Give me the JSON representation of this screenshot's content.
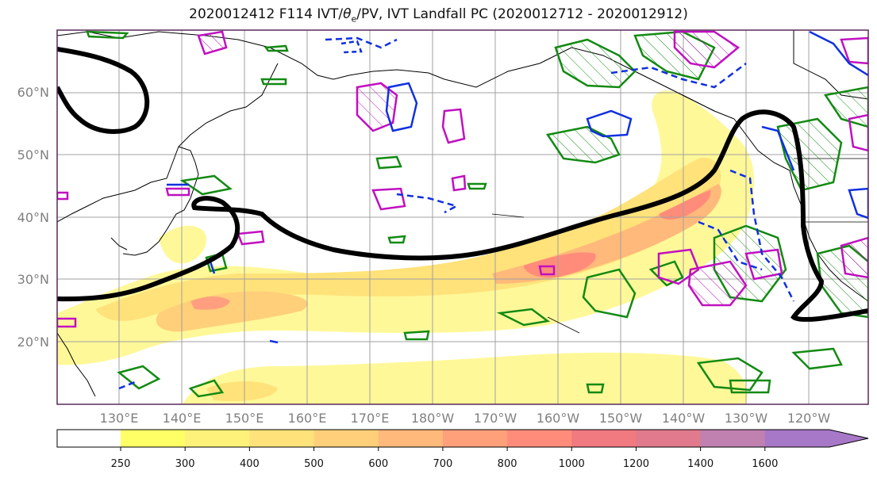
{
  "title": {
    "main": "2020012412 F114 IVT/",
    "theta": "θ",
    "theta_sub": "e",
    "rest": "/PV, IVT Landfall PC (2020012712 - 2020012912)"
  },
  "map": {
    "extent": {
      "lon_west": 120,
      "lon_east": 250,
      "lat_south": 10,
      "lat_north": 70
    },
    "lat_ticks": [
      {
        "value": 20,
        "label": "20°N"
      },
      {
        "value": 30,
        "label": "30°N"
      },
      {
        "value": 40,
        "label": "40°N"
      },
      {
        "value": 50,
        "label": "50°N"
      },
      {
        "value": 60,
        "label": "60°N"
      }
    ],
    "lon_ticks": [
      {
        "value": 130,
        "label": "130°E"
      },
      {
        "value": 140,
        "label": "140°E"
      },
      {
        "value": 150,
        "label": "150°E"
      },
      {
        "value": 160,
        "label": "160°E"
      },
      {
        "value": 170,
        "label": "170°E"
      },
      {
        "value": 180,
        "label": "180°W"
      },
      {
        "value": 190,
        "label": "170°W"
      },
      {
        "value": 200,
        "label": "160°W"
      },
      {
        "value": 210,
        "label": "150°W"
      },
      {
        "value": 220,
        "label": "140°W"
      },
      {
        "value": 230,
        "label": "130°W"
      },
      {
        "value": 240,
        "label": "120°W"
      }
    ],
    "grid": true,
    "layers": {
      "ivt_shading": "filled contours of integrated vapor transport",
      "landfall_pc_contour": "thick black line",
      "theta_e_contours": "green with green hatching",
      "pv_contours": "magenta with magenta hatching",
      "blue_contours": "blue solid and dashed"
    }
  },
  "colorbar": {
    "levels": [
      "250",
      "300",
      "400",
      "500",
      "600",
      "700",
      "800",
      "1000",
      "1200",
      "1400",
      "1600"
    ],
    "colors": [
      "#ffff66",
      "#fff27a",
      "#ffe27a",
      "#ffcf7a",
      "#ffb97a",
      "#ffa07a",
      "#ff8c7a",
      "#f07a80",
      "#e07a8c",
      "#c080b0",
      "#a878c8"
    ],
    "extend": "max"
  },
  "colors": {
    "ivt_light": "#fff899",
    "ivt_mid": "#ffd27f",
    "ivt_high": "#ff9f7f",
    "landfall": "#000000",
    "theta_e": "#138a13",
    "pv": "#c010c0",
    "blue": "#1030e0",
    "coast": "#000000",
    "grid": "#a0a0a0",
    "frame": "#5a2a5a"
  }
}
